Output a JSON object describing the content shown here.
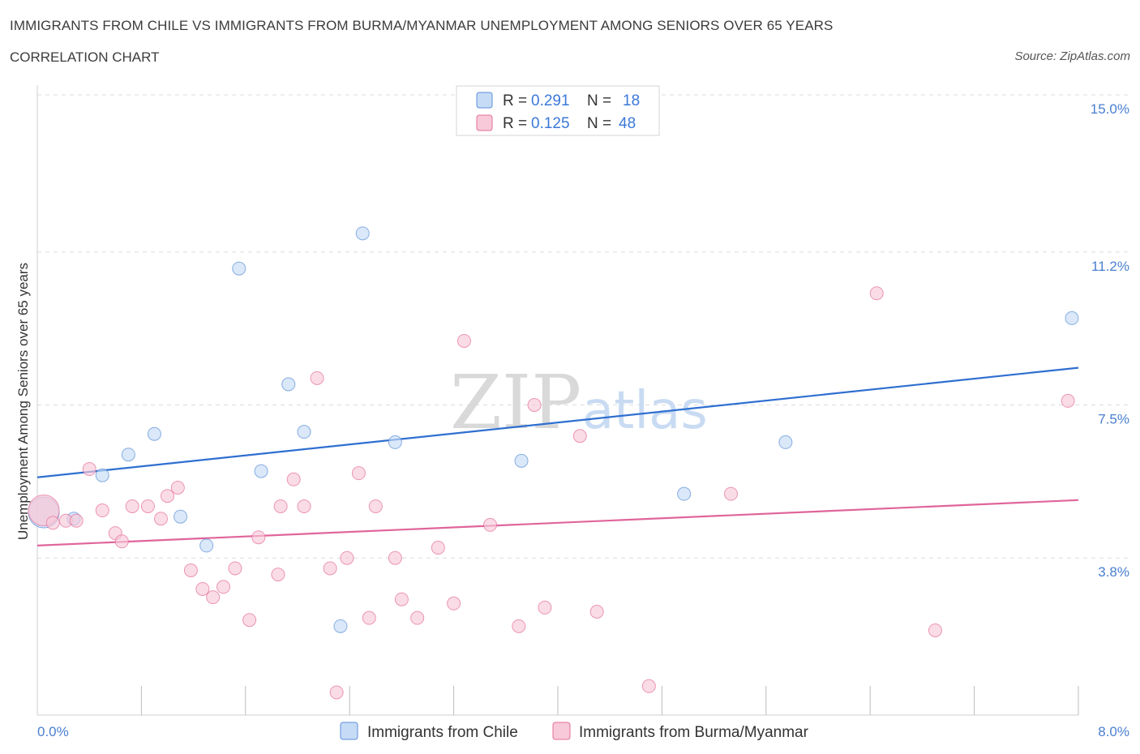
{
  "header": {
    "title": "IMMIGRANTS FROM CHILE VS IMMIGRANTS FROM BURMA/MYANMAR UNEMPLOYMENT AMONG SENIORS OVER 65 YEARS",
    "subtitle": "CORRELATION CHART",
    "source": "Source: ZipAtlas.com"
  },
  "watermark": {
    "zip": "ZIP",
    "atlas": "atlas"
  },
  "chart_data": {
    "type": "scatter",
    "title": "IMMIGRANTS FROM CHILE VS IMMIGRANTS FROM BURMA/MYANMAR UNEMPLOYMENT AMONG SENIORS OVER 65 YEARS",
    "xlabel": "",
    "ylabel": "Unemployment Among Seniors over 65 years",
    "xlim": [
      0,
      8.0
    ],
    "ylim": [
      0,
      15.0
    ],
    "x_tick_labels": {
      "min": "0.0%",
      "max": "8.0%"
    },
    "y_ticks": [
      {
        "value": 3.8,
        "label": "3.8%"
      },
      {
        "value": 7.5,
        "label": "7.5%"
      },
      {
        "value": 11.2,
        "label": "11.2%"
      },
      {
        "value": 15.0,
        "label": "15.0%"
      }
    ],
    "grid": true,
    "legend_position": "top-center",
    "series": [
      {
        "name": "Immigrants from Chile",
        "color": "#5b8fd6",
        "fill": "#c6dbf6",
        "R": "0.291",
        "N": "18",
        "trend": {
          "x0": 0.0,
          "y0": 5.75,
          "x1": 8.0,
          "y1": 8.4
        },
        "points": [
          {
            "x": 0.05,
            "y": 4.9,
            "big": true
          },
          {
            "x": 0.28,
            "y": 4.75
          },
          {
            "x": 0.5,
            "y": 5.8
          },
          {
            "x": 0.7,
            "y": 6.3
          },
          {
            "x": 0.9,
            "y": 6.8
          },
          {
            "x": 1.1,
            "y": 4.8
          },
          {
            "x": 1.3,
            "y": 4.1
          },
          {
            "x": 1.55,
            "y": 10.8
          },
          {
            "x": 1.72,
            "y": 5.9
          },
          {
            "x": 1.93,
            "y": 8.0
          },
          {
            "x": 2.05,
            "y": 6.85
          },
          {
            "x": 2.33,
            "y": 2.15
          },
          {
            "x": 2.5,
            "y": 11.65
          },
          {
            "x": 2.75,
            "y": 6.6
          },
          {
            "x": 3.72,
            "y": 6.15
          },
          {
            "x": 4.97,
            "y": 5.35
          },
          {
            "x": 5.75,
            "y": 6.6
          },
          {
            "x": 7.95,
            "y": 9.6
          }
        ]
      },
      {
        "name": "Immigrants from Burma/Myanmar",
        "color": "#e46f9a",
        "fill": "#f8c9d8",
        "R": "0.125",
        "N": "48",
        "trend": {
          "x0": 0.0,
          "y0": 4.1,
          "x1": 8.0,
          "y1": 5.2
        },
        "points": [
          {
            "x": 0.05,
            "y": 4.95,
            "big": true
          },
          {
            "x": 0.12,
            "y": 4.65
          },
          {
            "x": 0.22,
            "y": 4.7
          },
          {
            "x": 0.3,
            "y": 4.7
          },
          {
            "x": 0.4,
            "y": 5.95
          },
          {
            "x": 0.5,
            "y": 4.95
          },
          {
            "x": 0.6,
            "y": 4.4
          },
          {
            "x": 0.65,
            "y": 4.2
          },
          {
            "x": 0.73,
            "y": 5.05
          },
          {
            "x": 0.85,
            "y": 5.05
          },
          {
            "x": 0.95,
            "y": 4.75
          },
          {
            "x": 1.0,
            "y": 5.3
          },
          {
            "x": 1.08,
            "y": 5.5
          },
          {
            "x": 1.18,
            "y": 3.5
          },
          {
            "x": 1.27,
            "y": 3.05
          },
          {
            "x": 1.35,
            "y": 2.85
          },
          {
            "x": 1.43,
            "y": 3.1
          },
          {
            "x": 1.52,
            "y": 3.55
          },
          {
            "x": 1.63,
            "y": 2.3
          },
          {
            "x": 1.7,
            "y": 4.3
          },
          {
            "x": 1.85,
            "y": 3.4
          },
          {
            "x": 1.87,
            "y": 5.05
          },
          {
            "x": 1.97,
            "y": 5.7
          },
          {
            "x": 2.05,
            "y": 5.05
          },
          {
            "x": 2.15,
            "y": 8.15
          },
          {
            "x": 2.25,
            "y": 3.55
          },
          {
            "x": 2.3,
            "y": 0.55
          },
          {
            "x": 2.38,
            "y": 3.8
          },
          {
            "x": 2.47,
            "y": 5.85
          },
          {
            "x": 2.55,
            "y": 2.35
          },
          {
            "x": 2.6,
            "y": 5.05
          },
          {
            "x": 2.75,
            "y": 3.8
          },
          {
            "x": 2.8,
            "y": 2.8
          },
          {
            "x": 2.92,
            "y": 2.35
          },
          {
            "x": 3.08,
            "y": 4.05
          },
          {
            "x": 3.2,
            "y": 2.7
          },
          {
            "x": 3.28,
            "y": 9.05
          },
          {
            "x": 3.48,
            "y": 4.6
          },
          {
            "x": 3.7,
            "y": 2.15
          },
          {
            "x": 3.82,
            "y": 7.5
          },
          {
            "x": 3.9,
            "y": 2.6
          },
          {
            "x": 4.17,
            "y": 6.75
          },
          {
            "x": 4.3,
            "y": 2.5
          },
          {
            "x": 4.7,
            "y": 0.7
          },
          {
            "x": 5.33,
            "y": 5.35
          },
          {
            "x": 6.45,
            "y": 10.2
          },
          {
            "x": 6.9,
            "y": 2.05
          },
          {
            "x": 7.92,
            "y": 7.6
          }
        ]
      }
    ]
  },
  "legend": {
    "r_label": "R = ",
    "n_label": "N = "
  }
}
